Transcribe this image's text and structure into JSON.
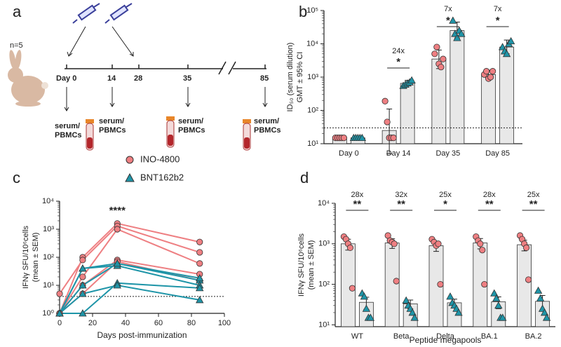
{
  "panel_labels": [
    "a",
    "b",
    "c",
    "d"
  ],
  "timeline": {
    "n_label": "n=5",
    "days": [
      "Day 0",
      "14",
      "28",
      "35",
      "85"
    ],
    "samples": [
      [
        "serum/",
        "PBMCs"
      ],
      [
        "serum/",
        "PBMCs"
      ],
      [
        "serum/",
        "PBMCs"
      ],
      [
        "serum/",
        "PBMCs"
      ]
    ]
  },
  "chart_data": [
    {
      "type": "bar",
      "y_label": [
        "ID₅₀ (serum dilution)",
        "GMT ± 95% CI"
      ],
      "categories": [
        "Day 0",
        "Day 14",
        "Day 35",
        "Day 85"
      ],
      "log_scale": true,
      "ylim": [
        10,
        100000
      ],
      "yticks": [
        {
          "value": 10,
          "label": "10¹"
        },
        {
          "value": 100,
          "label": "10²"
        },
        {
          "value": 1000,
          "label": "10³"
        },
        {
          "value": 10000,
          "label": "10⁴"
        },
        {
          "value": 100000,
          "label": "10⁵"
        }
      ],
      "bar_color": "#e8e8e8",
      "threshold": 30,
      "fold_labels": [
        null,
        "24x",
        "7x",
        "7x"
      ],
      "sig_labels": [
        null,
        "*",
        "*",
        "*"
      ],
      "series": [
        {
          "name": "INO-4800",
          "color": "#ee7f82",
          "marker": "circle",
          "values": [
            15,
            25,
            3500,
            1200
          ],
          "ci": [
            [
              15,
              15
            ],
            [
              5,
              110
            ],
            [
              1800,
              6500
            ],
            [
              900,
              1600
            ]
          ],
          "points": [
            [
              15,
              15,
              15,
              15,
              15
            ],
            [
              190,
              45,
              15,
              15,
              15
            ],
            [
              5000,
              8000,
              2500,
              2000,
              3500
            ],
            [
              1200,
              1500,
              900,
              1000,
              1500
            ]
          ]
        },
        {
          "name": "BNT162b2",
          "color": "#1f95a8",
          "marker": "triangle",
          "values": [
            15,
            650,
            25000,
            8000
          ],
          "ci": [
            [
              15,
              15
            ],
            [
              550,
              800
            ],
            [
              15000,
              45000
            ],
            [
              5000,
              13000
            ]
          ],
          "points": [
            [
              15,
              15,
              15,
              15,
              15
            ],
            [
              550,
              600,
              650,
              700,
              800
            ],
            [
              50000,
              20000,
              15000,
              25000,
              20000
            ],
            [
              8000,
              6000,
              5000,
              10000,
              12000
            ]
          ]
        }
      ]
    },
    {
      "type": "line",
      "y_label": [
        "IFNγ SFU/10⁶cells",
        "(mean ± SEM)"
      ],
      "x_label": "Days post-immunization",
      "x": [
        0,
        14,
        35,
        85
      ],
      "xlim": [
        0,
        100
      ],
      "xticks": [
        0,
        20,
        40,
        60,
        80,
        100
      ],
      "log_scale": true,
      "ylim": [
        1,
        10000
      ],
      "yticks": [
        {
          "value": 1,
          "label": "10⁰"
        },
        {
          "value": 10,
          "label": "10¹"
        },
        {
          "value": 100,
          "label": "10²"
        },
        {
          "value": 1000,
          "label": "10³"
        },
        {
          "value": 10000,
          "label": "10⁴"
        }
      ],
      "threshold": 4,
      "annotation": "****",
      "series": [
        {
          "name": "INO-4800",
          "color": "#ee7f82",
          "marker": "circle",
          "values": [
            [
              1,
              100,
              1600,
              350
            ],
            [
              5,
              80,
              1300,
              150
            ],
            [
              1,
              20,
              1000,
              60
            ],
            [
              1,
              10,
              80,
              25
            ],
            [
              1,
              5,
              70,
              15
            ]
          ]
        },
        {
          "name": "BNT162b2",
          "color": "#1f95a8",
          "marker": "triangle",
          "values": [
            [
              1,
              40,
              60,
              15
            ],
            [
              1,
              40,
              50,
              10
            ],
            [
              1,
              10,
              60,
              18
            ],
            [
              1,
              1,
              12,
              8
            ],
            [
              1,
              5,
              10,
              3
            ]
          ]
        }
      ]
    },
    {
      "type": "bar",
      "y_label": [
        "IFNγ SFU/10⁶cells",
        "(mean ± SEM)"
      ],
      "x_label": "Peptide megapools",
      "categories": [
        "WT",
        "Beta",
        "Delta",
        "BA.1",
        "BA.2"
      ],
      "log_scale": true,
      "ylim": [
        9,
        10000
      ],
      "yticks": [
        {
          "value": 10,
          "label": "10¹"
        },
        {
          "value": 100,
          "label": "10²"
        },
        {
          "value": 1000,
          "label": "10³"
        },
        {
          "value": 10000,
          "label": "10⁴"
        }
      ],
      "bar_color": "#e8e8e8",
      "fold_labels": [
        "28x",
        "32x",
        "25x",
        "28x",
        "25x"
      ],
      "sig_labels": [
        "**",
        "**",
        "*",
        "**",
        "**"
      ],
      "series": [
        {
          "name": "INO-4800",
          "color": "#ee7f82",
          "marker": "circle",
          "values": [
            1000,
            1050,
            900,
            1050,
            950
          ],
          "sem": [
            300,
            280,
            250,
            300,
            280
          ],
          "points": [
            [
              1500,
              1300,
              1000,
              800,
              80
            ],
            [
              1600,
              1200,
              1100,
              1000,
              120
            ],
            [
              1300,
              1100,
              900,
              1000,
              100
            ],
            [
              1500,
              1200,
              1000,
              700,
              100
            ],
            [
              1600,
              1300,
              1000,
              800,
              130
            ]
          ]
        },
        {
          "name": "BNT162b2",
          "color": "#1f95a8",
          "marker": "triangle",
          "values": [
            36,
            33,
            35,
            37,
            38
          ],
          "sem": [
            12,
            8,
            8,
            12,
            15
          ],
          "points": [
            [
              60,
              50,
              25,
              15,
              15
            ],
            [
              40,
              30,
              25,
              20,
              15
            ],
            [
              50,
              35,
              30,
              25,
              20
            ],
            [
              60,
              45,
              30,
              15,
              15
            ],
            [
              70,
              45,
              25,
              20,
              15
            ]
          ]
        }
      ]
    }
  ]
}
